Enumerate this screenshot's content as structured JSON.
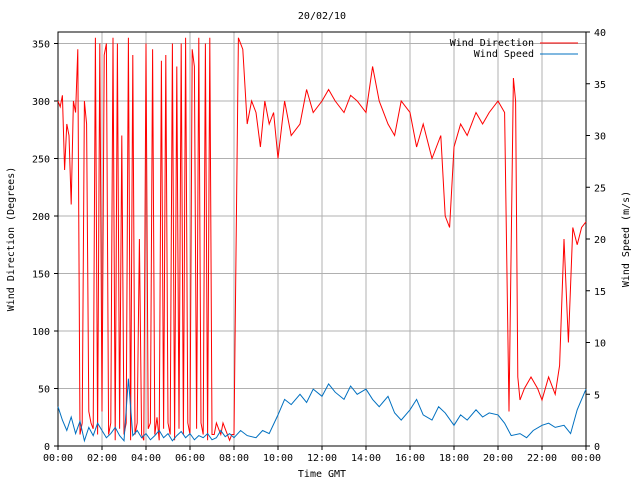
{
  "chart_data": {
    "type": "line",
    "title": "20/02/10",
    "xlabel": "Time GMT",
    "ylabel_left": "Wind Direction (Degrees)",
    "ylabel_right": "Wind Speed (m/s)",
    "xlim": [
      "00:00",
      "24:00"
    ],
    "ylim_left": [
      0,
      360
    ],
    "ylim_right": [
      0,
      40
    ],
    "x_ticks": [
      "00:00",
      "02:00",
      "04:00",
      "06:00",
      "08:00",
      "10:00",
      "12:00",
      "14:00",
      "16:00",
      "18:00",
      "20:00",
      "22:00",
      "00:00"
    ],
    "y_ticks_left": [
      0,
      50,
      100,
      150,
      200,
      250,
      300,
      350
    ],
    "y_ticks_right": [
      0,
      5,
      10,
      15,
      20,
      25,
      30,
      35,
      40
    ],
    "grid": true,
    "legend_position": "top-right",
    "colors": {
      "direction": "#ff0000",
      "speed": "#0070c0",
      "grid": "#b0b0b0"
    },
    "series": [
      {
        "name": "Wind Direction",
        "axis": "left",
        "x_hours": [
          0,
          0.1,
          0.2,
          0.3,
          0.4,
          0.5,
          0.6,
          0.7,
          0.8,
          0.9,
          1.0,
          1.1,
          1.2,
          1.3,
          1.4,
          1.5,
          1.6,
          1.7,
          1.8,
          1.9,
          2.0,
          2.1,
          2.2,
          2.3,
          2.4,
          2.5,
          2.6,
          2.7,
          2.8,
          2.9,
          3.0,
          3.1,
          3.2,
          3.3,
          3.4,
          3.5,
          3.6,
          3.7,
          3.8,
          3.9,
          4.0,
          4.1,
          4.2,
          4.3,
          4.4,
          4.5,
          4.6,
          4.7,
          4.8,
          4.9,
          5.0,
          5.1,
          5.2,
          5.3,
          5.4,
          5.5,
          5.6,
          5.7,
          5.8,
          5.9,
          6.0,
          6.1,
          6.2,
          6.3,
          6.4,
          6.5,
          6.6,
          6.7,
          6.8,
          6.9,
          7.0,
          7.1,
          7.2,
          7.3,
          7.4,
          7.5,
          7.6,
          7.7,
          7.8,
          7.9,
          8.0,
          8.2,
          8.4,
          8.6,
          8.8,
          9.0,
          9.2,
          9.4,
          9.6,
          9.8,
          10.0,
          10.3,
          10.6,
          11.0,
          11.3,
          11.6,
          12.0,
          12.3,
          12.6,
          13.0,
          13.3,
          13.6,
          14.0,
          14.3,
          14.6,
          15.0,
          15.3,
          15.6,
          16.0,
          16.3,
          16.6,
          17.0,
          17.2,
          17.4,
          17.6,
          17.8,
          18.0,
          18.3,
          18.6,
          19.0,
          19.3,
          19.6,
          20.0,
          20.3,
          20.5,
          20.7,
          20.8,
          20.9,
          21.0,
          21.2,
          21.5,
          21.8,
          22.0,
          22.3,
          22.6,
          22.8,
          23.0,
          23.2,
          23.4,
          23.6,
          23.8,
          24.0
        ],
        "values": [
          300,
          295,
          305,
          240,
          280,
          270,
          210,
          300,
          290,
          345,
          10,
          20,
          300,
          280,
          30,
          20,
          15,
          355,
          10,
          350,
          30,
          340,
          350,
          10,
          20,
          355,
          5,
          350,
          15,
          270,
          10,
          20,
          355,
          5,
          340,
          10,
          20,
          180,
          10,
          5,
          350,
          15,
          20,
          345,
          10,
          25,
          5,
          335,
          15,
          340,
          20,
          10,
          350,
          5,
          330,
          15,
          350,
          10,
          355,
          20,
          10,
          345,
          330,
          15,
          355,
          20,
          10,
          350,
          5,
          355,
          10,
          10,
          20,
          15,
          10,
          20,
          15,
          10,
          5,
          10,
          10,
          355,
          345,
          280,
          300,
          290,
          260,
          300,
          280,
          290,
          250,
          300,
          270,
          280,
          310,
          290,
          300,
          310,
          300,
          290,
          305,
          300,
          290,
          330,
          300,
          280,
          270,
          300,
          290,
          260,
          280,
          250,
          260,
          270,
          200,
          190,
          260,
          280,
          270,
          290,
          280,
          290,
          300,
          290,
          30,
          320,
          300,
          60,
          40,
          50,
          60,
          50,
          40,
          60,
          45,
          70,
          180,
          90,
          190,
          175,
          190,
          195
        ]
      },
      {
        "name": "Wind Speed",
        "axis": "right",
        "x_hours": [
          0,
          0.2,
          0.4,
          0.6,
          0.8,
          1.0,
          1.2,
          1.4,
          1.6,
          1.8,
          2.0,
          2.2,
          2.4,
          2.6,
          2.8,
          3.0,
          3.2,
          3.4,
          3.6,
          3.8,
          4.0,
          4.2,
          4.4,
          4.6,
          4.8,
          5.0,
          5.2,
          5.4,
          5.6,
          5.8,
          6.0,
          6.2,
          6.4,
          6.6,
          6.8,
          7.0,
          7.2,
          7.4,
          7.6,
          7.8,
          8.0,
          8.3,
          8.6,
          9.0,
          9.3,
          9.6,
          10.0,
          10.3,
          10.6,
          11.0,
          11.3,
          11.6,
          12.0,
          12.3,
          12.6,
          13.0,
          13.3,
          13.6,
          14.0,
          14.3,
          14.6,
          15.0,
          15.3,
          15.6,
          16.0,
          16.3,
          16.6,
          17.0,
          17.3,
          17.6,
          18.0,
          18.3,
          18.6,
          19.0,
          19.3,
          19.6,
          20.0,
          20.3,
          20.6,
          21.0,
          21.3,
          21.6,
          22.0,
          22.3,
          22.6,
          23.0,
          23.3,
          23.6,
          24.0
        ],
        "values": [
          3.8,
          2.5,
          1.5,
          2.8,
          1.2,
          2.4,
          0.5,
          1.8,
          1.0,
          2.2,
          1.5,
          0.8,
          1.2,
          1.8,
          1.0,
          0.5,
          6.5,
          1.0,
          1.5,
          0.8,
          1.2,
          0.6,
          1.0,
          1.5,
          0.8,
          1.2,
          0.5,
          1.0,
          1.4,
          0.8,
          1.2,
          0.6,
          1.0,
          0.8,
          1.2,
          0.6,
          0.8,
          1.5,
          0.9,
          1.2,
          0.8,
          1.5,
          1.0,
          0.8,
          1.5,
          1.2,
          3.0,
          4.5,
          4.0,
          5.0,
          4.2,
          5.5,
          4.8,
          6.0,
          5.2,
          4.5,
          5.8,
          5.0,
          5.5,
          4.5,
          3.8,
          4.8,
          3.2,
          2.5,
          3.5,
          4.5,
          3.0,
          2.5,
          3.8,
          3.2,
          2.0,
          3.0,
          2.5,
          3.5,
          2.8,
          3.2,
          3.0,
          2.2,
          1.0,
          1.2,
          0.8,
          1.5,
          2.0,
          2.2,
          1.8,
          2.0,
          1.2,
          3.5,
          5.5
        ]
      }
    ]
  }
}
